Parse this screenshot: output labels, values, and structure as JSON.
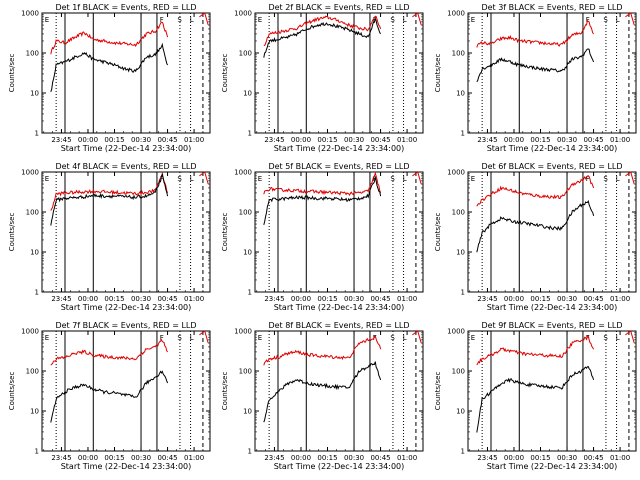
{
  "figure": {
    "x_label": "Start Time (22-Dec-14 23:34:00)",
    "y_label": "Counts/sec",
    "marker_letters": {
      "E": "E",
      "F": "F",
      "S": "S",
      "L": "L"
    }
  },
  "chart_data": [
    {
      "type": "line",
      "title": "Det 1f BLACK = Events, RED = LLD",
      "xlabel": "Start Time (22-Dec-14 23:34:00)",
      "ylabel": "Counts/sec",
      "yscale": "log",
      "ylim": [
        1,
        1000
      ],
      "x_ticks": [
        "23:45",
        "00:00",
        "00:15",
        "00:30",
        "00:45",
        "01:00"
      ],
      "y_ticks": [
        "1",
        "10",
        "100",
        "1000"
      ],
      "events_line": {
        "x": [
          "23:39",
          "23:42",
          "23:47",
          "23:53",
          "23:58",
          "00:03",
          "00:09",
          "00:15",
          "00:21",
          "00:27",
          "00:33",
          "00:38",
          "00:42",
          "00:45"
        ],
        "y": [
          10,
          50,
          60,
          80,
          100,
          70,
          60,
          50,
          40,
          35,
          80,
          90,
          150,
          50
        ]
      },
      "lld_line": {
        "x": [
          "23:39",
          "23:42",
          "23:47",
          "23:53",
          "23:58",
          "00:03",
          "00:09",
          "00:15",
          "00:21",
          "00:27",
          "00:33",
          "00:38",
          "00:42",
          "00:45"
        ],
        "y": [
          100,
          200,
          180,
          250,
          320,
          220,
          200,
          180,
          170,
          160,
          300,
          350,
          600,
          250
        ]
      }
    },
    {
      "type": "line",
      "title": "Det 2f BLACK = Events, RED = LLD",
      "xlabel": "Start Time (22-Dec-14 23:34:00)",
      "ylabel": "Counts/sec",
      "yscale": "log",
      "ylim": [
        1,
        1000
      ],
      "x_ticks": [
        "23:45",
        "00:00",
        "00:15",
        "00:30",
        "00:45",
        "01:00"
      ],
      "y_ticks": [
        "1",
        "10",
        "100",
        "1000"
      ],
      "events_line": {
        "x": [
          "23:39",
          "23:42",
          "23:47",
          "23:53",
          "23:58",
          "00:03",
          "00:09",
          "00:15",
          "00:21",
          "00:27",
          "00:33",
          "00:38",
          "00:42",
          "00:45"
        ],
        "y": [
          80,
          200,
          220,
          250,
          300,
          400,
          500,
          550,
          450,
          380,
          300,
          250,
          700,
          300
        ]
      },
      "lld_line": {
        "x": [
          "23:39",
          "23:42",
          "23:47",
          "23:53",
          "23:58",
          "00:03",
          "00:09",
          "00:15",
          "00:21",
          "00:27",
          "00:33",
          "00:38",
          "00:42",
          "00:45"
        ],
        "y": [
          150,
          300,
          330,
          380,
          420,
          550,
          700,
          780,
          650,
          500,
          420,
          380,
          900,
          400
        ]
      }
    },
    {
      "type": "line",
      "title": "Det 3f BLACK = Events, RED = LLD",
      "xlabel": "Start Time (22-Dec-14 23:34:00)",
      "ylabel": "Counts/sec",
      "yscale": "log",
      "ylim": [
        1,
        1000
      ],
      "x_ticks": [
        "23:45",
        "00:00",
        "00:15",
        "00:30",
        "00:45",
        "01:00"
      ],
      "y_ticks": [
        "1",
        "10",
        "100",
        "1000"
      ],
      "events_line": {
        "x": [
          "23:39",
          "23:42",
          "23:47",
          "23:53",
          "23:58",
          "00:03",
          "00:09",
          "00:15",
          "00:21",
          "00:27",
          "00:33",
          "00:38",
          "00:42",
          "00:45"
        ],
        "y": [
          20,
          40,
          50,
          70,
          60,
          50,
          45,
          40,
          38,
          35,
          70,
          80,
          130,
          60
        ]
      },
      "lld_line": {
        "x": [
          "23:39",
          "23:42",
          "23:47",
          "23:53",
          "23:58",
          "00:03",
          "00:09",
          "00:15",
          "00:21",
          "00:27",
          "00:33",
          "00:38",
          "00:42",
          "00:45"
        ],
        "y": [
          150,
          180,
          170,
          230,
          240,
          200,
          190,
          180,
          170,
          160,
          280,
          320,
          650,
          300
        ]
      }
    },
    {
      "type": "line",
      "title": "Det 4f BLACK = Events, RED = LLD",
      "xlabel": "Start Time (22-Dec-14 23:34:00)",
      "ylabel": "Counts/sec",
      "yscale": "log",
      "ylim": [
        1,
        1000
      ],
      "x_ticks": [
        "23:45",
        "00:00",
        "00:15",
        "00:30",
        "00:45",
        "01:00"
      ],
      "y_ticks": [
        "1",
        "10",
        "100",
        "1000"
      ],
      "events_line": {
        "x": [
          "23:39",
          "23:42",
          "23:47",
          "23:53",
          "23:58",
          "00:03",
          "00:09",
          "00:15",
          "00:21",
          "00:27",
          "00:33",
          "00:38",
          "00:42",
          "00:45"
        ],
        "y": [
          50,
          200,
          220,
          230,
          240,
          260,
          250,
          250,
          240,
          230,
          250,
          300,
          800,
          250
        ]
      },
      "lld_line": {
        "x": [
          "23:39",
          "23:42",
          "23:47",
          "23:53",
          "23:58",
          "00:03",
          "00:09",
          "00:15",
          "00:21",
          "00:27",
          "00:33",
          "00:38",
          "00:42",
          "00:45"
        ],
        "y": [
          100,
          280,
          300,
          310,
          320,
          330,
          320,
          310,
          300,
          290,
          310,
          340,
          900,
          300
        ]
      }
    },
    {
      "type": "line",
      "title": "Det 5f BLACK = Events, RED = LLD",
      "xlabel": "Start Time (22-Dec-14 23:34:00)",
      "ylabel": "Counts/sec",
      "yscale": "log",
      "ylim": [
        1,
        1000
      ],
      "x_ticks": [
        "23:45",
        "00:00",
        "00:15",
        "00:30",
        "00:45",
        "01:00"
      ],
      "y_ticks": [
        "1",
        "10",
        "100",
        "1000"
      ],
      "events_line": {
        "x": [
          "23:39",
          "23:42",
          "23:47",
          "23:53",
          "23:58",
          "00:03",
          "00:09",
          "00:15",
          "00:21",
          "00:27",
          "00:33",
          "00:38",
          "00:42",
          "00:45"
        ],
        "y": [
          50,
          200,
          210,
          220,
          230,
          230,
          220,
          220,
          210,
          200,
          220,
          250,
          700,
          250
        ]
      },
      "lld_line": {
        "x": [
          "23:39",
          "23:42",
          "23:47",
          "23:53",
          "23:58",
          "00:03",
          "00:09",
          "00:15",
          "00:21",
          "00:27",
          "00:33",
          "00:38",
          "00:42",
          "00:45"
        ],
        "y": [
          300,
          380,
          360,
          350,
          340,
          330,
          320,
          310,
          300,
          290,
          300,
          330,
          900,
          300
        ]
      }
    },
    {
      "type": "line",
      "title": "Det 6f BLACK = Events, RED = LLD",
      "xlabel": "Start Time (22-Dec-14 23:34:00)",
      "ylabel": "Counts/sec",
      "yscale": "log",
      "ylim": [
        1,
        1000
      ],
      "x_ticks": [
        "23:45",
        "00:00",
        "00:15",
        "00:30",
        "00:45",
        "01:00"
      ],
      "y_ticks": [
        "1",
        "10",
        "100",
        "1000"
      ],
      "events_line": {
        "x": [
          "23:39",
          "23:42",
          "23:47",
          "23:53",
          "23:58",
          "00:03",
          "00:09",
          "00:15",
          "00:21",
          "00:27",
          "00:33",
          "00:38",
          "00:42",
          "00:45"
        ],
        "y": [
          10,
          30,
          50,
          70,
          60,
          55,
          50,
          45,
          40,
          38,
          100,
          150,
          180,
          80
        ]
      },
      "lld_line": {
        "x": [
          "23:39",
          "23:42",
          "23:47",
          "23:53",
          "23:58",
          "00:03",
          "00:09",
          "00:15",
          "00:21",
          "00:27",
          "00:33",
          "00:38",
          "00:42",
          "00:45"
        ],
        "y": [
          150,
          200,
          280,
          400,
          350,
          300,
          270,
          250,
          240,
          230,
          500,
          600,
          800,
          400
        ]
      }
    },
    {
      "type": "line",
      "title": "Det 7f BLACK = Events, RED = LLD",
      "xlabel": "Start Time (22-Dec-14 23:34:00)",
      "ylabel": "Counts/sec",
      "yscale": "log",
      "ylim": [
        1,
        1000
      ],
      "x_ticks": [
        "23:45",
        "00:00",
        "00:15",
        "00:30",
        "00:45",
        "01:00"
      ],
      "y_ticks": [
        "1",
        "10",
        "100",
        "1000"
      ],
      "events_line": {
        "x": [
          "23:39",
          "23:42",
          "23:47",
          "23:53",
          "23:58",
          "00:03",
          "00:09",
          "00:15",
          "00:21",
          "00:27",
          "00:33",
          "00:38",
          "00:42",
          "00:45"
        ],
        "y": [
          5,
          20,
          30,
          40,
          45,
          35,
          30,
          28,
          25,
          22,
          50,
          70,
          100,
          50
        ]
      },
      "lld_line": {
        "x": [
          "23:39",
          "23:42",
          "23:47",
          "23:53",
          "23:58",
          "00:03",
          "00:09",
          "00:15",
          "00:21",
          "00:27",
          "00:33",
          "00:38",
          "00:42",
          "00:45"
        ],
        "y": [
          150,
          200,
          220,
          280,
          300,
          250,
          230,
          220,
          210,
          200,
          350,
          400,
          600,
          300
        ]
      }
    },
    {
      "type": "line",
      "title": "Det 8f BLACK = Events, RED = LLD",
      "xlabel": "Start Time (22-Dec-14 23:34:00)",
      "ylabel": "Counts/sec",
      "yscale": "log",
      "ylim": [
        1,
        1000
      ],
      "x_ticks": [
        "23:45",
        "00:00",
        "00:15",
        "00:30",
        "00:45",
        "01:00"
      ],
      "y_ticks": [
        "1",
        "10",
        "100",
        "1000"
      ],
      "events_line": {
        "x": [
          "23:39",
          "23:42",
          "23:47",
          "23:53",
          "23:58",
          "00:03",
          "00:09",
          "00:15",
          "00:21",
          "00:27",
          "00:33",
          "00:38",
          "00:42",
          "00:45"
        ],
        "y": [
          5,
          20,
          30,
          50,
          60,
          50,
          45,
          42,
          40,
          38,
          100,
          130,
          160,
          60
        ]
      },
      "lld_line": {
        "x": [
          "23:39",
          "23:42",
          "23:47",
          "23:53",
          "23:58",
          "00:03",
          "00:09",
          "00:15",
          "00:21",
          "00:27",
          "00:33",
          "00:38",
          "00:42",
          "00:45"
        ],
        "y": [
          150,
          200,
          220,
          280,
          300,
          260,
          240,
          230,
          220,
          210,
          500,
          600,
          700,
          350
        ]
      }
    },
    {
      "type": "line",
      "title": "Det 9f BLACK = Events, RED = LLD",
      "xlabel": "Start Time (22-Dec-14 23:34:00)",
      "ylabel": "Counts/sec",
      "yscale": "log",
      "ylim": [
        1,
        1000
      ],
      "x_ticks": [
        "23:45",
        "00:00",
        "00:15",
        "00:30",
        "00:45",
        "01:00"
      ],
      "y_ticks": [
        "1",
        "10",
        "100",
        "1000"
      ],
      "events_line": {
        "x": [
          "23:39",
          "23:42",
          "23:47",
          "23:53",
          "23:58",
          "00:03",
          "00:09",
          "00:15",
          "00:21",
          "00:27",
          "00:33",
          "00:38",
          "00:42",
          "00:45"
        ],
        "y": [
          3,
          20,
          30,
          50,
          60,
          50,
          45,
          42,
          40,
          38,
          80,
          100,
          130,
          60
        ]
      },
      "lld_line": {
        "x": [
          "23:39",
          "23:42",
          "23:47",
          "23:53",
          "23:58",
          "00:03",
          "00:09",
          "00:15",
          "00:21",
          "00:27",
          "00:33",
          "00:38",
          "00:42",
          "00:45"
        ],
        "y": [
          150,
          200,
          250,
          350,
          320,
          280,
          260,
          250,
          240,
          230,
          500,
          600,
          700,
          350
        ]
      }
    }
  ]
}
